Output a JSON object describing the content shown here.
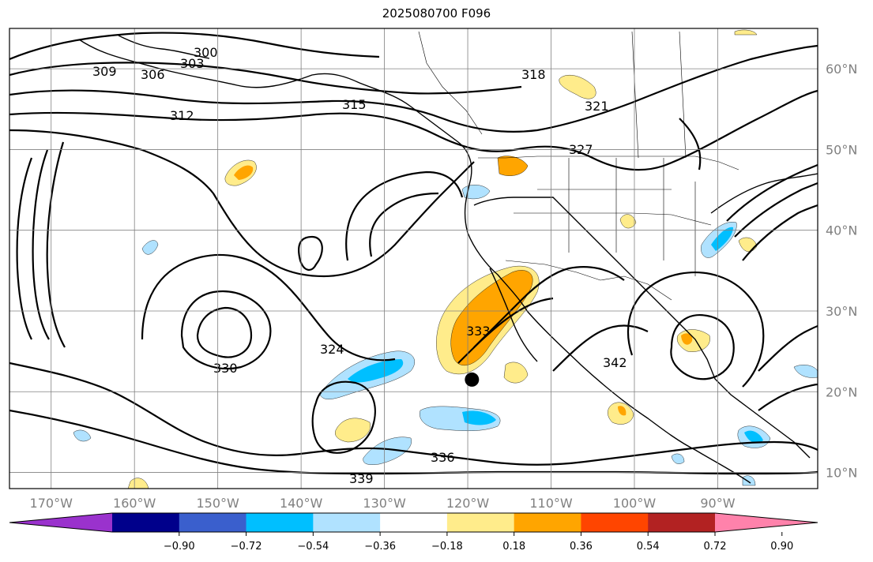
{
  "title": "2025080700 F096",
  "map": {
    "lon_range": [
      -175,
      -78
    ],
    "lat_range": [
      8,
      65
    ],
    "lat_ticks": [
      {
        "value": 10,
        "label": "10°N"
      },
      {
        "value": 20,
        "label": "20°N"
      },
      {
        "value": 30,
        "label": "30°N"
      },
      {
        "value": 40,
        "label": "40°N"
      },
      {
        "value": 50,
        "label": "50°N"
      },
      {
        "value": 60,
        "label": "60°N"
      }
    ],
    "lon_ticks": [
      {
        "value": -170,
        "label": "170°W"
      },
      {
        "value": -160,
        "label": "160°W"
      },
      {
        "value": -150,
        "label": "150°W"
      },
      {
        "value": -140,
        "label": "140°W"
      },
      {
        "value": -130,
        "label": "130°W"
      },
      {
        "value": -120,
        "label": "120°W"
      },
      {
        "value": -110,
        "label": "110°W"
      },
      {
        "value": -100,
        "label": "100°W"
      },
      {
        "value": -90,
        "label": "90°W"
      }
    ],
    "grid": true,
    "contour_labels": [
      "300",
      "303",
      "306",
      "309",
      "312",
      "315",
      "318",
      "321",
      "324",
      "327",
      "330",
      "333",
      "336",
      "339",
      "342"
    ],
    "marker": {
      "lon": -119.5,
      "lat": 21.5,
      "color": "#000000"
    }
  },
  "colorbar": {
    "colors": [
      "#9a32cd",
      "#00008b",
      "#3a5fcd",
      "#00bfff",
      "#b0e2ff",
      "#ffffff",
      "#ffec8b",
      "#ffa500",
      "#ff4500",
      "#b22222",
      "#ff82ab"
    ],
    "tick_labels": [
      "−0.90",
      "−0.72",
      "−0.54",
      "−0.36",
      "−0.18",
      "0.18",
      "0.36",
      "0.54",
      "0.72",
      "0.90"
    ],
    "extend": "both"
  }
}
